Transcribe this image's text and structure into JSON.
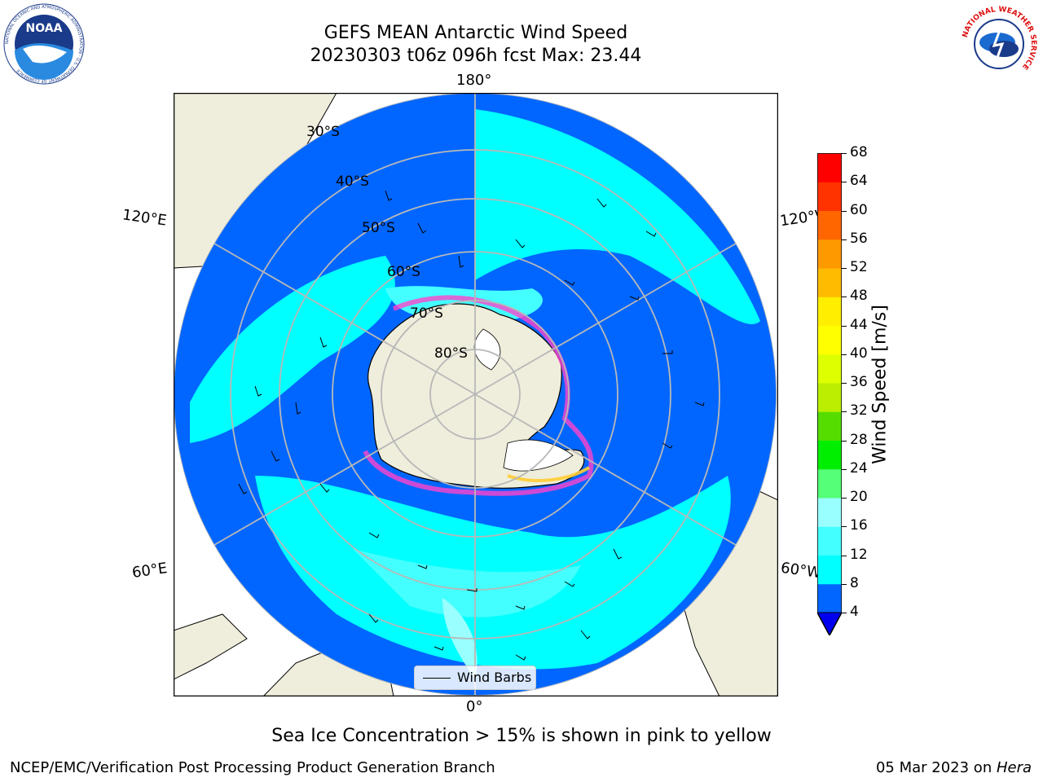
{
  "title": {
    "line1": "GEFS MEAN Antarctic Wind Speed",
    "line2": "20230303 t06z 096h fcst   Max: 23.44"
  },
  "logos": {
    "noaa": {
      "text": "NOAA",
      "ring_text": "NATIONAL OCEANIC AND ATMOSPHERIC ADMINISTRATION · U.S. DEPARTMENT OF COMMERCE"
    },
    "nws": {
      "ring_text": "NATIONAL WEATHER SERVICE"
    }
  },
  "map": {
    "projection": "south-polar-stereographic",
    "longitude_labels": {
      "top": "180°",
      "bottom": "0°",
      "left_upper": "120°E",
      "right_upper": "120°W",
      "left_lower": "60°E",
      "right_lower": "60°W"
    },
    "latitude_labels": [
      "30°S",
      "40°S",
      "50°S",
      "60°S",
      "70°S",
      "80°S"
    ],
    "legend": {
      "label": "Wind Barbs"
    }
  },
  "colorbar": {
    "label": "Wind Speed [m/s]",
    "ticks": [
      "4",
      "8",
      "12",
      "16",
      "20",
      "24",
      "28",
      "32",
      "36",
      "40",
      "44",
      "48",
      "52",
      "56",
      "60",
      "64",
      "68"
    ],
    "colors": [
      "#0066ff",
      "#00ffff",
      "#44ffff",
      "#99ffff",
      "#55ff77",
      "#00ee00",
      "#55dd00",
      "#bbee00",
      "#ddff00",
      "#ffff00",
      "#ffee00",
      "#ffbb00",
      "#ff9900",
      "#ff6600",
      "#ff3300",
      "#ff0000"
    ],
    "under_color": "#0000ee"
  },
  "note": "Sea Ice Concentration > 15% is shown in pink to yellow",
  "footer": {
    "left": "NCEP/EMC/Verification Post Processing Product Generation Branch",
    "right_date": "05 Mar 2023 on ",
    "right_system": "Hera"
  }
}
